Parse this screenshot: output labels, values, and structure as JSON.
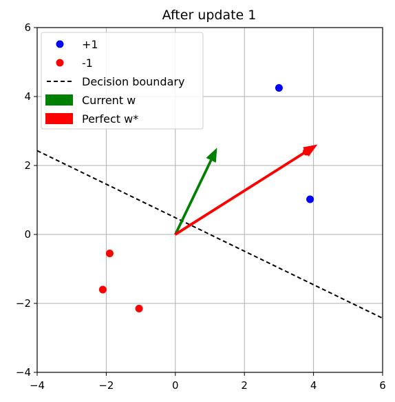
{
  "chart_data": {
    "type": "scatter",
    "title": "After update 1",
    "xlabel": "",
    "ylabel": "",
    "xlim": [
      -4,
      6
    ],
    "ylim": [
      -4,
      6
    ],
    "xticks": [
      -4,
      -2,
      0,
      2,
      4,
      6
    ],
    "yticks": [
      -4,
      -2,
      0,
      2,
      4,
      6
    ],
    "grid": true,
    "legend_position": "top-left",
    "series": [
      {
        "name": "+1",
        "kind": "points",
        "color": "#0000ff",
        "points": [
          [
            3.0,
            4.25
          ],
          [
            3.9,
            1.02
          ]
        ]
      },
      {
        "name": "-1",
        "kind": "points",
        "color": "#ff0000",
        "points": [
          [
            3.8,
            2.4
          ],
          [
            -1.9,
            -0.55
          ],
          [
            -2.1,
            -1.6
          ],
          [
            -1.05,
            -2.15
          ]
        ]
      },
      {
        "name": "Decision boundary",
        "kind": "line",
        "color": "#000000",
        "dashed": true,
        "points": [
          [
            -4,
            2.43
          ],
          [
            6,
            -2.43
          ]
        ]
      },
      {
        "name": "Current w",
        "kind": "arrow",
        "color": "#008000",
        "from": [
          0,
          0
        ],
        "to": [
          1.2,
          2.5
        ]
      },
      {
        "name": "Perfect w*",
        "kind": "arrow",
        "color": "#ff0000",
        "from": [
          0,
          0
        ],
        "to": [
          4.1,
          2.6
        ]
      }
    ]
  }
}
